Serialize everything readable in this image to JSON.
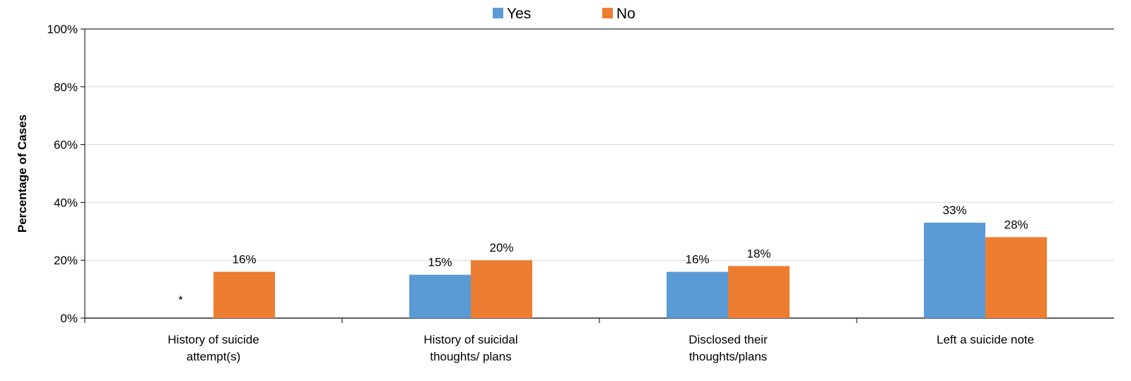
{
  "chart_data": {
    "type": "bar",
    "title": "",
    "xlabel": "",
    "ylabel": "Percentage of Cases",
    "ylim": [
      0,
      100
    ],
    "yticks": [
      0,
      20,
      40,
      60,
      80,
      100
    ],
    "ytick_labels": [
      "0%",
      "20%",
      "40%",
      "60%",
      "80%",
      "100%"
    ],
    "grid": true,
    "legend_position": "top-center",
    "categories": [
      [
        "History of suicide",
        "attempt(s)"
      ],
      [
        "History of suicidal",
        "thoughts/ plans"
      ],
      [
        "Disclosed their",
        "thoughts/plans"
      ],
      [
        "Left a suicide note"
      ]
    ],
    "series": [
      {
        "name": "Yes",
        "color": "#5B9BD5",
        "values": [
          null,
          15,
          16,
          33
        ],
        "labels": [
          "*",
          "15%",
          "16%",
          "33%"
        ]
      },
      {
        "name": "No",
        "color": "#ED7D31",
        "values": [
          16,
          20,
          18,
          28
        ],
        "labels": [
          "16%",
          "20%",
          "18%",
          "28%"
        ]
      }
    ]
  }
}
